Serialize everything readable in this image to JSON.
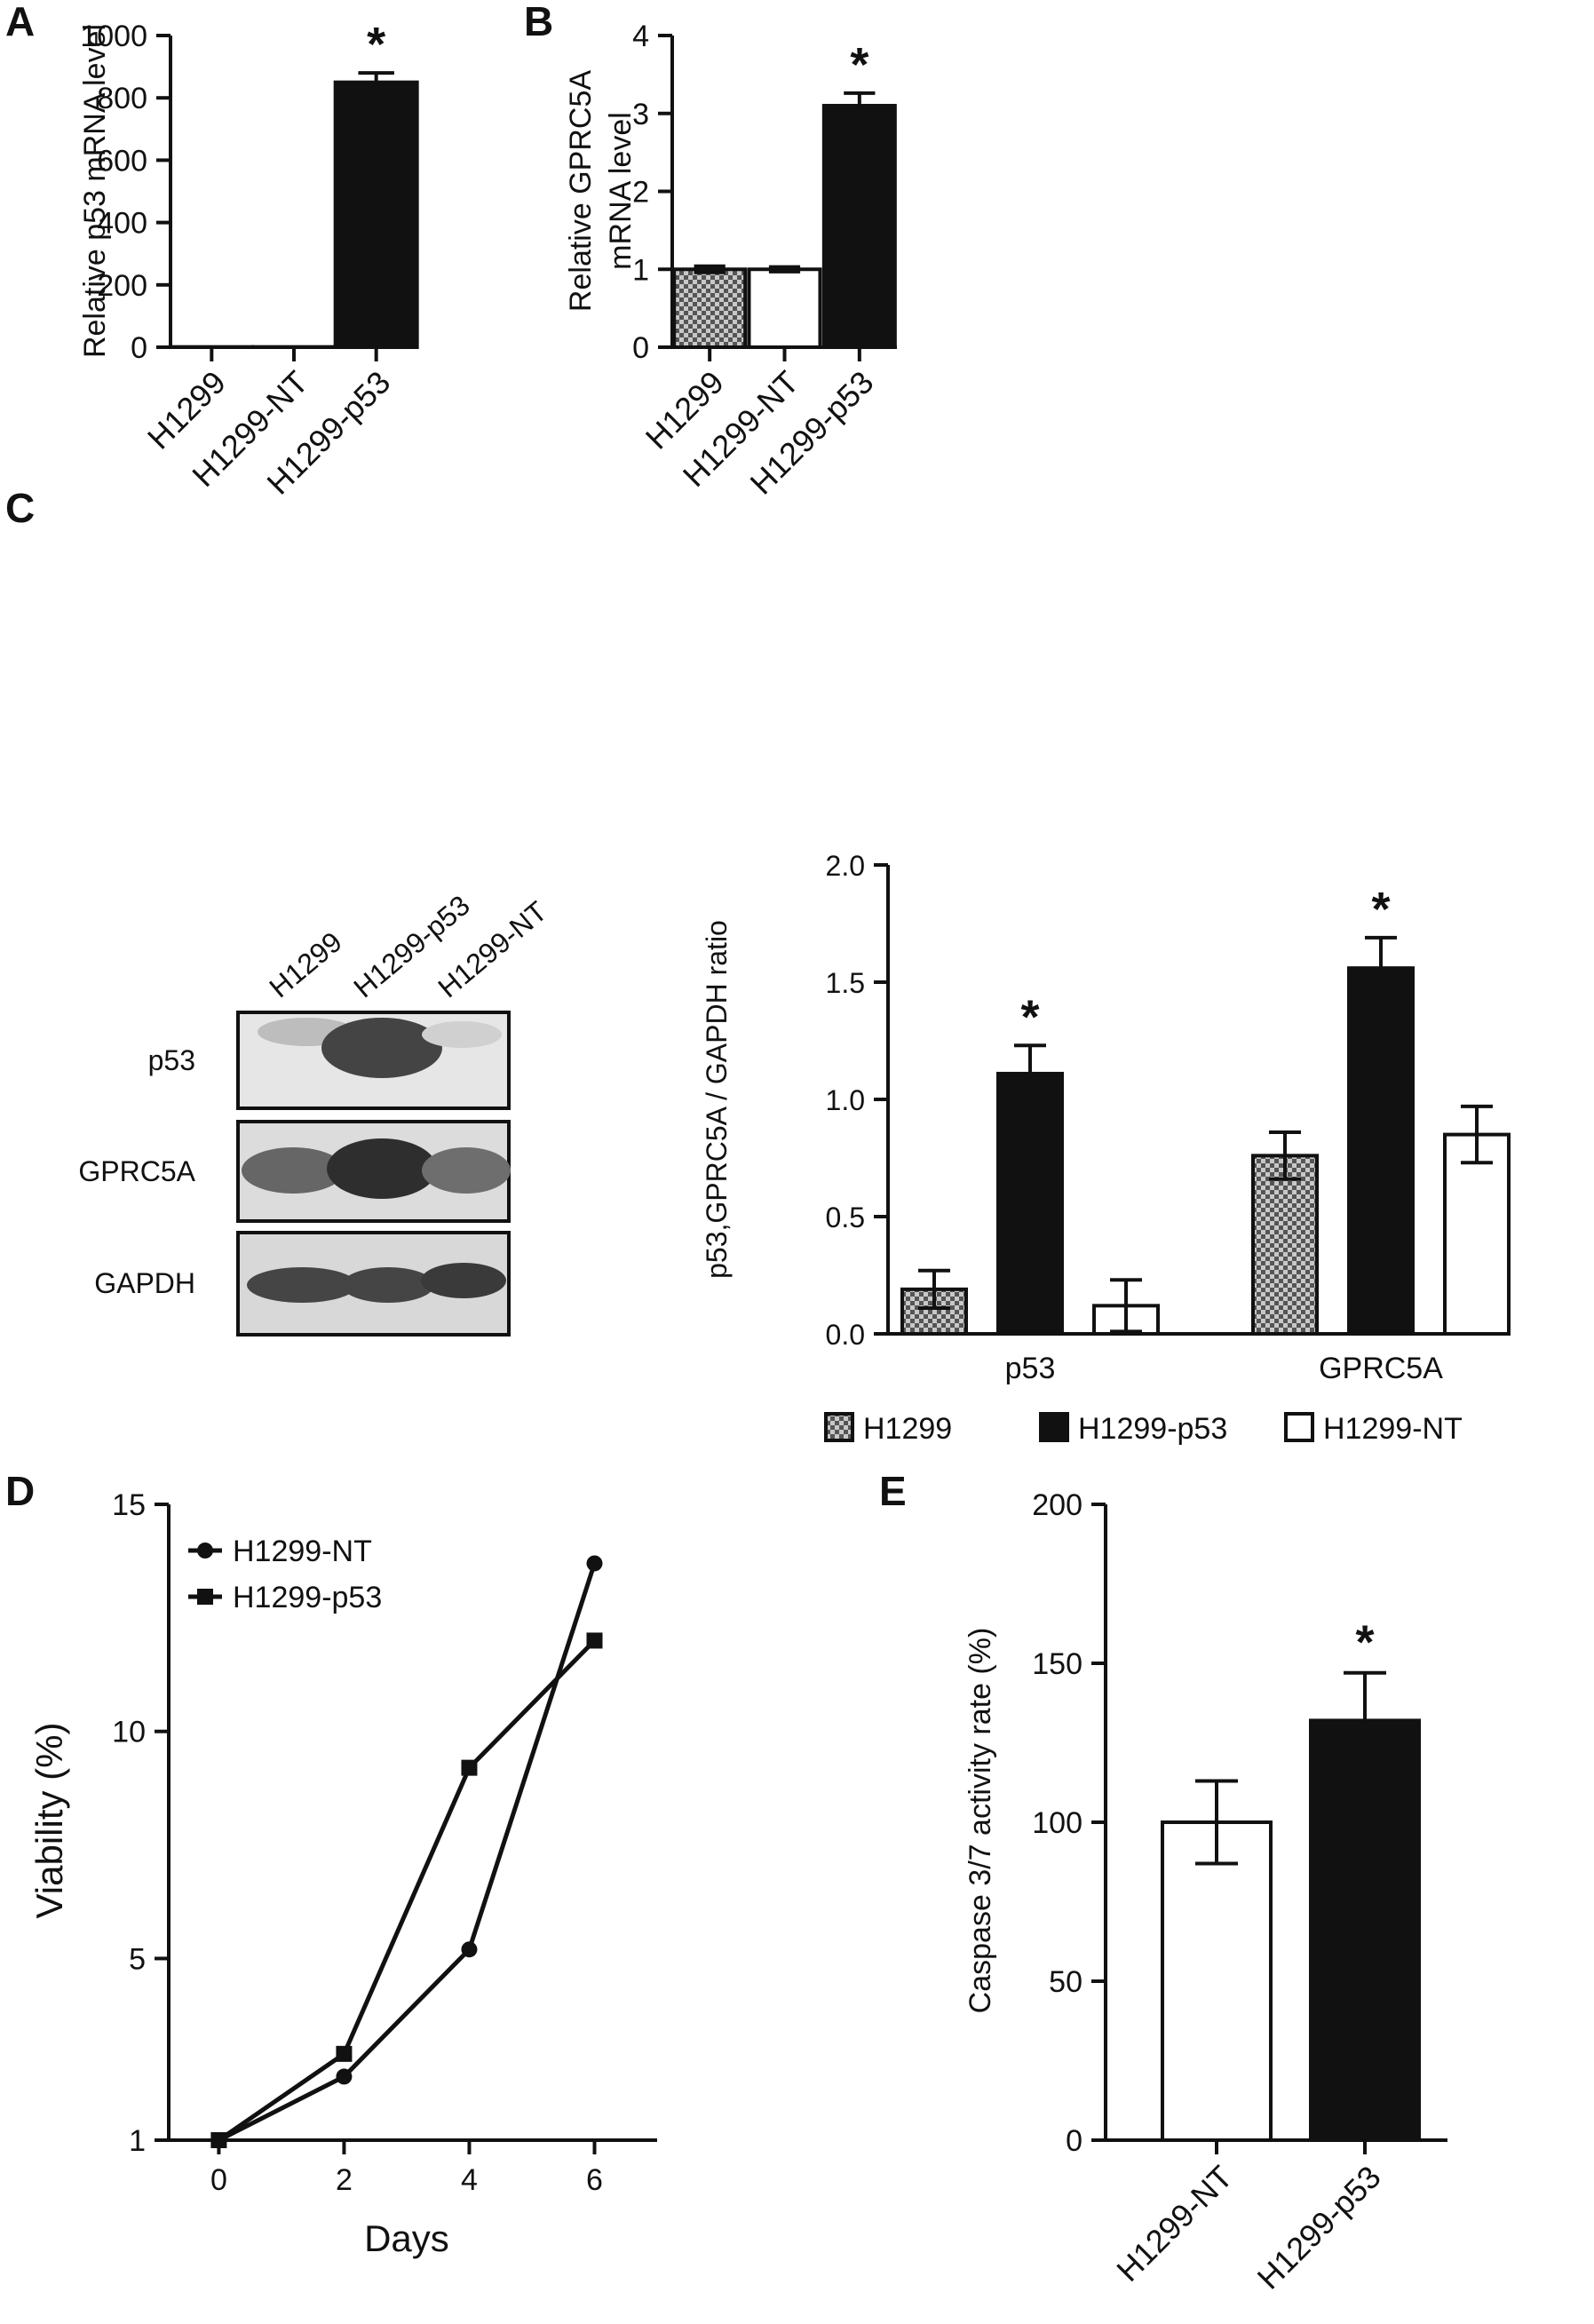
{
  "colors": {
    "black_bar": "#111111",
    "white_bar": "#ffffff",
    "hatch_bar": "#8a8a8a",
    "ink": "#111111"
  },
  "chart_data": [
    {
      "panel": "A",
      "type": "bar",
      "categories": [
        "H1299",
        "H1299-NT",
        "H1299-p53"
      ],
      "values": [
        1,
        1,
        850
      ],
      "errors": [
        0,
        0,
        30
      ],
      "fills": [
        "black",
        "black",
        "black"
      ],
      "significance": [
        "",
        "",
        "*"
      ],
      "ylabel": "Relative p53 mRNA level",
      "ylim": [
        0,
        1000
      ],
      "yticks": [
        "0",
        "200",
        "400",
        "600",
        "800",
        "1000"
      ],
      "grid": false
    },
    {
      "panel": "B",
      "type": "bar",
      "categories": [
        "H1299",
        "H1299-NT",
        "H1299-p53"
      ],
      "values": [
        1.0,
        1.0,
        3.1
      ],
      "errors": [
        0.04,
        0.03,
        0.16
      ],
      "fills": [
        "hatch",
        "white",
        "black"
      ],
      "significance": [
        "",
        "",
        "*"
      ],
      "ylabel_lines": [
        "Relative GPRC5A",
        "mRNA level"
      ],
      "ylim": [
        0,
        4
      ],
      "yticks": [
        "0",
        "1",
        "2",
        "3",
        "4"
      ],
      "grid": false
    },
    {
      "panel": "C",
      "type": "bar",
      "blot": {
        "lanes": [
          "H1299",
          "H1299-p53",
          "H1299-NT"
        ],
        "rows": [
          "p53",
          "GPRC5A",
          "GAPDH"
        ]
      },
      "categories": [
        "p53",
        "GPRC5A"
      ],
      "series": [
        {
          "name": "H1299",
          "fill": "hatch",
          "values": [
            0.19,
            0.76
          ],
          "errors": [
            0.08,
            0.1
          ]
        },
        {
          "name": "H1299-p53",
          "fill": "black",
          "values": [
            1.11,
            1.56
          ],
          "errors": [
            0.12,
            0.13
          ]
        },
        {
          "name": "H1299-NT",
          "fill": "white",
          "values": [
            0.12,
            0.85
          ],
          "errors": [
            0.11,
            0.12
          ]
        }
      ],
      "significance": [
        [
          "",
          "*",
          ""
        ],
        [
          "",
          "*",
          ""
        ]
      ],
      "ylabel": "p53,GPRC5A / GAPDH ratio",
      "ylim": [
        0,
        2.0
      ],
      "yticks": [
        "0.0",
        "0.5",
        "1.0",
        "1.5",
        "2.0"
      ],
      "legend_position": "bottom",
      "grid": false
    },
    {
      "panel": "D",
      "type": "line",
      "x": [
        0,
        2,
        4,
        6
      ],
      "series": [
        {
          "name": "H1299-NT",
          "marker": "circle",
          "values": [
            1,
            2.4,
            5.2,
            13.7
          ]
        },
        {
          "name": "H1299-p53",
          "marker": "square",
          "values": [
            1,
            2.9,
            9.2,
            12.0
          ]
        }
      ],
      "xlabel": "Days",
      "ylabel": "Viability (%)",
      "xlim": [
        -0.8,
        7
      ],
      "ylim": [
        1,
        15
      ],
      "xticks": [
        "0",
        "2",
        "4",
        "6"
      ],
      "yticks": [
        "1",
        "5",
        "10",
        "15"
      ],
      "legend_position": "top-left",
      "grid": false
    },
    {
      "panel": "E",
      "type": "bar",
      "categories": [
        "H1299-NT",
        "H1299-p53"
      ],
      "values": [
        100,
        132
      ],
      "errors": [
        13,
        15
      ],
      "fills": [
        "white",
        "black"
      ],
      "significance": [
        "",
        "*"
      ],
      "ylabel": "Caspase 3/7 activity rate (%)",
      "ylim": [
        0,
        200
      ],
      "yticks": [
        "0",
        "50",
        "100",
        "150",
        "200"
      ],
      "grid": false
    }
  ]
}
